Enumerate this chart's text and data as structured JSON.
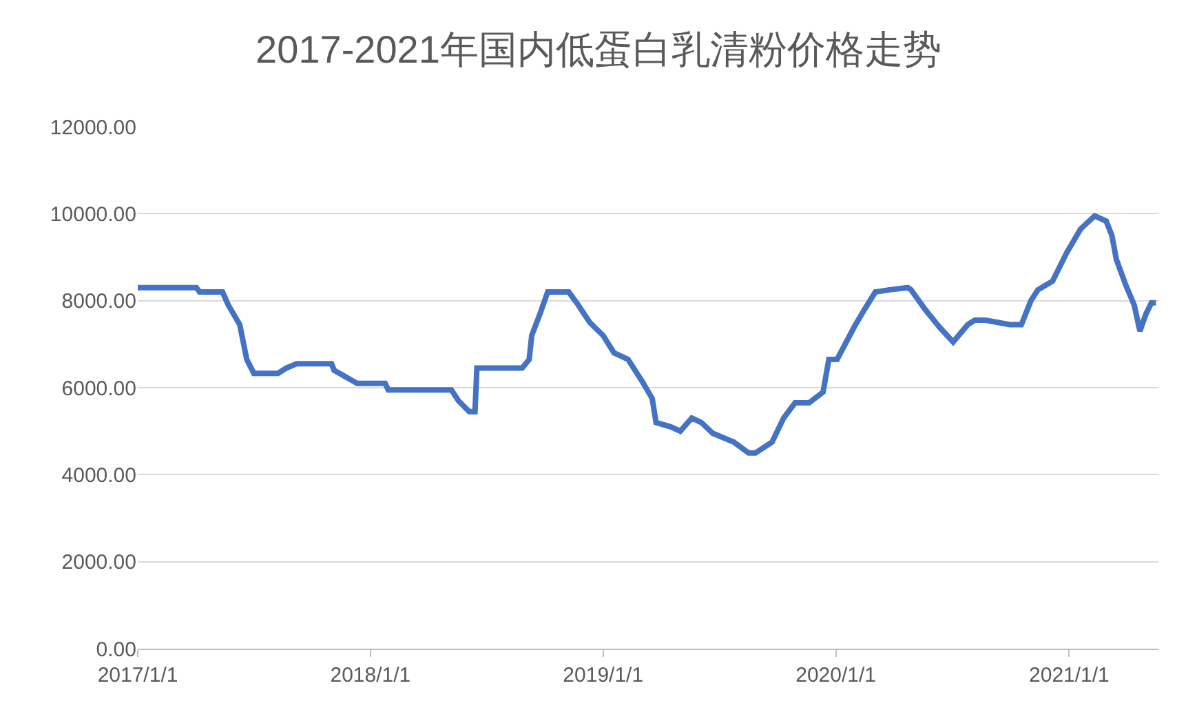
{
  "chart_data": {
    "type": "line",
    "title": "2017-2021年国内低蛋白乳清粉价格走势",
    "x": [
      "2017-01-01",
      "2017-04-03",
      "2017-04-08",
      "2017-05-14",
      "2017-05-23",
      "2017-06-10",
      "2017-06-21",
      "2017-07-02",
      "2017-08-09",
      "2017-08-22",
      "2017-09-07",
      "2017-11-01",
      "2017-11-05",
      "2017-11-23",
      "2017-12-11",
      "2018-01-24",
      "2018-01-29",
      "2018-05-08",
      "2018-05-19",
      "2018-06-05",
      "2018-06-14",
      "2018-06-17",
      "2018-08-27",
      "2018-09-07",
      "2018-09-11",
      "2018-09-24",
      "2018-10-06",
      "2018-11-08",
      "2018-11-23",
      "2018-12-11",
      "2019-01-01",
      "2019-01-18",
      "2019-02-09",
      "2019-03-03",
      "2019-03-19",
      "2019-03-25",
      "2019-04-17",
      "2019-05-02",
      "2019-05-20",
      "2019-06-04",
      "2019-06-22",
      "2019-07-25",
      "2019-08-17",
      "2019-08-28",
      "2019-09-23",
      "2019-10-11",
      "2019-10-29",
      "2019-11-20",
      "2019-12-12",
      "2019-12-21",
      "2020-01-03",
      "2020-01-30",
      "2020-02-15",
      "2020-03-03",
      "2020-03-25",
      "2020-04-23",
      "2020-04-28",
      "2020-05-20",
      "2020-06-11",
      "2020-07-03",
      "2020-07-26",
      "2020-08-06",
      "2020-08-23",
      "2020-09-30",
      "2020-10-18",
      "2020-11-02",
      "2020-11-13",
      "2020-12-06",
      "2020-12-28",
      "2021-01-19",
      "2021-02-10",
      "2021-02-28",
      "2021-03-09",
      "2021-03-16",
      "2021-03-31",
      "2021-04-13",
      "2021-04-22",
      "2021-05-01",
      "2021-05-10",
      "2021-05-17"
    ],
    "series": [
      {
        "color": "#4472c4",
        "values": [
          8300,
          8300,
          8200,
          8200,
          7900,
          7450,
          6650,
          6330,
          6330,
          6450,
          6550,
          6550,
          6400,
          6250,
          6100,
          6100,
          5950,
          5950,
          5700,
          5450,
          5450,
          6450,
          6450,
          6650,
          7200,
          7700,
          8200,
          8200,
          7900,
          7500,
          7200,
          6800,
          6650,
          6150,
          5750,
          5200,
          5100,
          5000,
          5300,
          5200,
          4950,
          4750,
          4500,
          4500,
          4750,
          5300,
          5650,
          5650,
          5900,
          6650,
          6650,
          7400,
          7800,
          8200,
          8250,
          8300,
          8250,
          7800,
          7400,
          7050,
          7450,
          7550,
          7550,
          7450,
          7450,
          8000,
          8250,
          8450,
          9100,
          9650,
          9950,
          9830,
          9500,
          8950,
          8350,
          7900,
          7300,
          7680,
          7950,
          7950
        ]
      }
    ],
    "xlim": [
      "2017-01-01",
      "2021-05-21"
    ],
    "xticks": [
      {
        "value": "2017-01-01",
        "label": "2017/1/1"
      },
      {
        "value": "2018-01-01",
        "label": "2018/1/1"
      },
      {
        "value": "2019-01-01",
        "label": "2019/1/1"
      },
      {
        "value": "2020-01-01",
        "label": "2020/1/1"
      },
      {
        "value": "2021-01-01",
        "label": "2021/1/1"
      }
    ],
    "ylim": [
      0,
      12000
    ],
    "yticks": [
      {
        "value": 0,
        "label": "0.00"
      },
      {
        "value": 2000,
        "label": "2000.00"
      },
      {
        "value": 4000,
        "label": "4000.00"
      },
      {
        "value": 6000,
        "label": "6000.00"
      },
      {
        "value": 8000,
        "label": "8000.00"
      },
      {
        "value": 10000,
        "label": "10000.00"
      },
      {
        "value": 12000,
        "label": "12000.00"
      }
    ],
    "grid": "y",
    "marker": "none",
    "line_style": "solid"
  }
}
